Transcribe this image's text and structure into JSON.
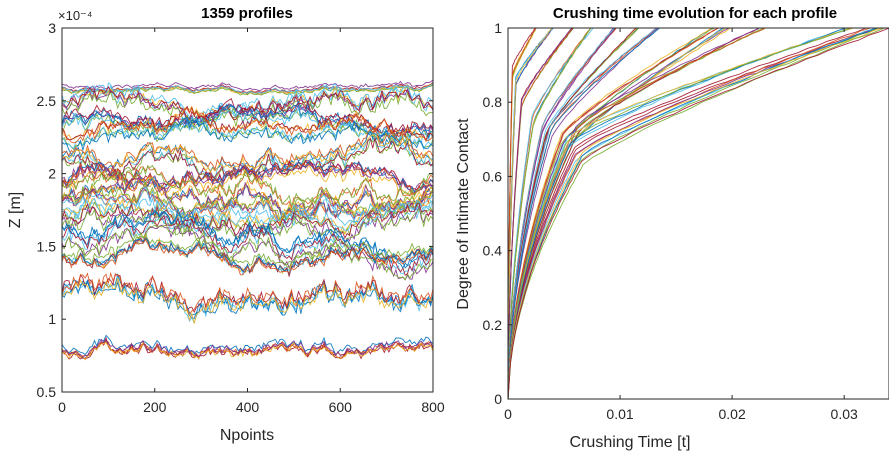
{
  "figure_background": "#ffffff",
  "chart_data": [
    {
      "type": "line",
      "title": "1359 profiles",
      "xlabel": "Npoints",
      "ylabel": "Z [m]",
      "xlim": [
        0,
        800
      ],
      "ylim": [
        5e-05,
        0.0003
      ],
      "x_ticks": [
        0,
        200,
        400,
        600,
        800
      ],
      "x_tick_labels": [
        "0",
        "200",
        "400",
        "600",
        "800"
      ],
      "y_ticks": [
        5e-05,
        0.0001,
        0.00015,
        0.0002,
        0.00025,
        0.0003
      ],
      "y_tick_labels": [
        "0.5",
        "1",
        "1.5",
        "2",
        "2.5",
        "3"
      ],
      "y_exponent_label": "×10⁻⁴",
      "grid": false,
      "profile_count": 1359,
      "bands": [
        {
          "mean": 0.000259,
          "spread": 2e-06,
          "volatility": 1.2e-06,
          "color": "#a2142f"
        },
        {
          "mean": 0.000248,
          "spread": 6e-06,
          "volatility": 4.5e-06,
          "color": "#4dbeee"
        },
        {
          "mean": 0.000235,
          "spread": 6e-06,
          "volatility": 4e-06,
          "color": "#0072bd"
        },
        {
          "mean": 0.000226,
          "spread": 5e-06,
          "volatility": 4e-06,
          "color": "#edb120"
        },
        {
          "mean": 0.00021,
          "spread": 5e-06,
          "volatility": 4.5e-06,
          "color": "#77ac30"
        },
        {
          "mean": 0.000196,
          "spread": 4e-06,
          "volatility": 4e-06,
          "color": "#7e2f8e"
        },
        {
          "mean": 0.000188,
          "spread": 5e-06,
          "volatility": 5e-06,
          "color": "#d95319"
        },
        {
          "mean": 0.000178,
          "spread": 5e-06,
          "volatility": 4.5e-06,
          "color": "#4dbeee"
        },
        {
          "mean": 0.000168,
          "spread": 5e-06,
          "volatility": 5e-06,
          "color": "#77ac30"
        },
        {
          "mean": 0.000156,
          "spread": 6e-06,
          "volatility": 5e-06,
          "color": "#0072bd"
        },
        {
          "mean": 0.000143,
          "spread": 4e-06,
          "volatility": 4e-06,
          "color": "#edb120"
        },
        {
          "mean": 0.000115,
          "spread": 3e-06,
          "volatility": 6e-06,
          "color": "#0072bd"
        },
        {
          "mean": 7.95e-05,
          "spread": 2e-06,
          "volatility": 3e-06,
          "color": "#a2142f"
        }
      ]
    },
    {
      "type": "line",
      "title": "Crushing time evolution for each profile",
      "xlabel": "Crushing Time [t]",
      "ylabel": "Degree of Intimate Contact",
      "xlim": [
        0,
        0.034
      ],
      "ylim": [
        0,
        1
      ],
      "x_ticks": [
        0,
        0.01,
        0.02,
        0.03
      ],
      "x_tick_labels": [
        "0",
        "0.01",
        "0.02",
        "0.03"
      ],
      "y_ticks": [
        0,
        0.2,
        0.4,
        0.6,
        0.8,
        1
      ],
      "y_tick_labels": [
        "0",
        "0.2",
        "0.4",
        "0.6",
        "0.8",
        "1"
      ],
      "grid": false,
      "groups": [
        {
          "t_end": 0.0025,
          "knee": [
            0.0004,
            0.88
          ],
          "color": "#edb120"
        },
        {
          "t_end": 0.004,
          "knee": [
            0.0007,
            0.85
          ],
          "color": "#0072bd"
        },
        {
          "t_end": 0.0058,
          "knee": [
            0.0012,
            0.8
          ],
          "color": "#77ac30"
        },
        {
          "t_end": 0.0075,
          "knee": [
            0.0022,
            0.75
          ],
          "color": "#d95319"
        },
        {
          "t_end": 0.0095,
          "knee": [
            0.003,
            0.72
          ],
          "color": "#7e2f8e"
        },
        {
          "t_end": 0.0115,
          "knee": [
            0.0034,
            0.72
          ],
          "color": "#4dbeee"
        },
        {
          "t_end": 0.0135,
          "knee": [
            0.0038,
            0.72
          ],
          "color": "#a2142f"
        },
        {
          "t_end": 0.0185,
          "knee": [
            0.0048,
            0.7
          ],
          "color": "#0072bd"
        },
        {
          "t_end": 0.0195,
          "knee": [
            0.0052,
            0.68
          ],
          "color": "#edb120"
        },
        {
          "t_end": 0.0225,
          "knee": [
            0.0062,
            0.72
          ],
          "color": "#77ac30"
        },
        {
          "t_end": 0.0305,
          "knee": [
            0.0055,
            0.7
          ],
          "color": "#4dbeee"
        },
        {
          "t_end": 0.0325,
          "knee": [
            0.006,
            0.66
          ],
          "color": "#a2142f"
        },
        {
          "t_end": 0.0335,
          "knee": [
            0.0065,
            0.65
          ],
          "color": "#77ac30"
        }
      ]
    }
  ]
}
